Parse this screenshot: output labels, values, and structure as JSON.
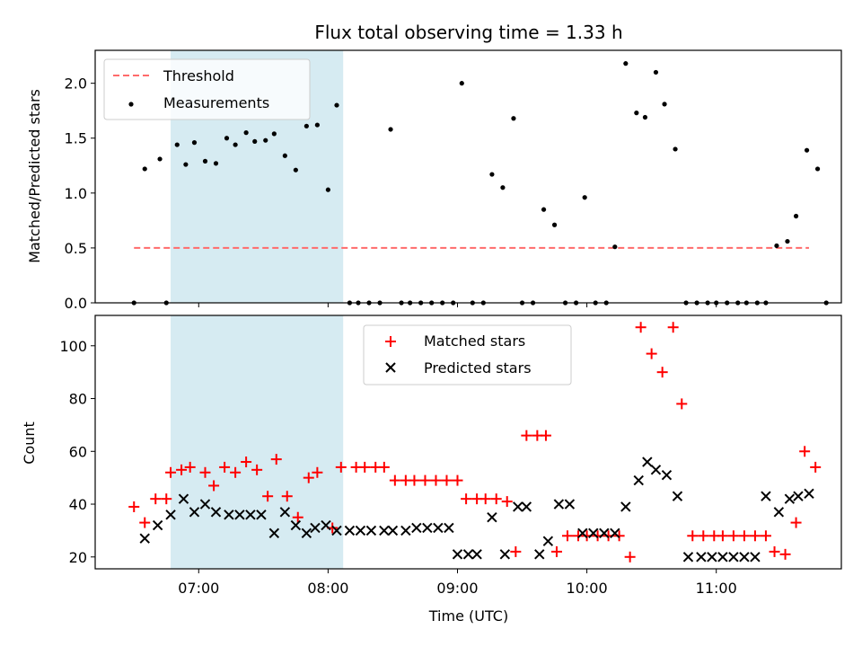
{
  "chart_data": [
    {
      "type": "scatter",
      "title": "Flux total observing time = 1.33 h",
      "xlabel": "",
      "ylabel": "Matched/Predicted stars",
      "xlim": [
        "06:12",
        "11:58"
      ],
      "ylim": [
        0,
        2.3
      ],
      "yticks": [
        0.0,
        0.5,
        1.0,
        1.5,
        2.0
      ],
      "ytick_labels": [
        "0.0",
        "0.5",
        "1.0",
        "1.5",
        "2.0"
      ],
      "legend_placement": "upper-left",
      "grid": false,
      "shaded_interval": {
        "start": "06:47",
        "end": "08:07",
        "color": "#add8e6"
      },
      "series": [
        {
          "name": "Threshold",
          "style": "dashed-line",
          "color": "#ff6b6b",
          "x": [
            "06:30",
            "11:43"
          ],
          "y": [
            0.5,
            0.5
          ]
        },
        {
          "name": "Measurements",
          "style": "dot",
          "color": "#000000",
          "x": [
            "06:30",
            "06:35",
            "06:42",
            "06:45",
            "06:50",
            "06:54",
            "06:58",
            "07:03",
            "07:08",
            "07:13",
            "07:17",
            "07:22",
            "07:26",
            "07:31",
            "07:35",
            "07:40",
            "07:45",
            "07:50",
            "07:55",
            "08:00",
            "08:04",
            "08:10",
            "08:14",
            "08:19",
            "08:24",
            "08:29",
            "08:34",
            "08:38",
            "08:43",
            "08:48",
            "08:53",
            "08:58",
            "09:02",
            "09:07",
            "09:12",
            "09:16",
            "09:21",
            "09:26",
            "09:30",
            "09:35",
            "09:40",
            "09:45",
            "09:50",
            "09:55",
            "09:59",
            "10:04",
            "10:09",
            "10:13",
            "10:18",
            "10:23",
            "10:27",
            "10:32",
            "10:36",
            "10:41",
            "10:46",
            "10:51",
            "10:56",
            "11:00",
            "11:05",
            "11:10",
            "11:14",
            "11:19",
            "11:23",
            "11:28",
            "11:33",
            "11:37",
            "11:42",
            "11:47",
            "11:51"
          ],
          "y": [
            0.0,
            1.22,
            1.31,
            0.0,
            1.44,
            1.26,
            1.46,
            1.29,
            1.27,
            1.5,
            1.44,
            1.55,
            1.47,
            1.48,
            1.54,
            1.34,
            1.21,
            1.61,
            1.62,
            1.03,
            1.8,
            0.0,
            0.0,
            0.0,
            0.0,
            1.58,
            0.0,
            0.0,
            0.0,
            0.0,
            0.0,
            0.0,
            2.0,
            0.0,
            0.0,
            1.17,
            1.05,
            1.68,
            0.0,
            0.0,
            0.85,
            0.71,
            0.0,
            0.0,
            0.96,
            0.0,
            0.0,
            0.51,
            2.18,
            1.73,
            1.69,
            2.1,
            1.81,
            1.4,
            0.0,
            0.0,
            0.0,
            0.0,
            0.0,
            0.0,
            0.0,
            0.0,
            0.0,
            0.52,
            0.56,
            0.79,
            1.39,
            1.22,
            0.0
          ]
        }
      ]
    },
    {
      "type": "scatter",
      "title": "",
      "xlabel": "Time (UTC)",
      "ylabel": "Count",
      "xlim": [
        "06:12",
        "11:58"
      ],
      "ylim": [
        15.5,
        111.5
      ],
      "xticks": [
        "07:00",
        "08:00",
        "09:00",
        "10:00",
        "11:00"
      ],
      "yticks": [
        20,
        40,
        60,
        80,
        100
      ],
      "ytick_labels": [
        "20",
        "40",
        "60",
        "80",
        "100"
      ],
      "legend_placement": "upper-center",
      "grid": false,
      "shaded_interval": {
        "start": "06:47",
        "end": "08:07",
        "color": "#add8e6"
      },
      "series": [
        {
          "name": "Matched stars",
          "marker": "plus",
          "color": "#ff0000",
          "x": [
            "06:30",
            "06:35",
            "06:40",
            "06:45",
            "06:47",
            "06:52",
            "06:56",
            "07:03",
            "07:07",
            "07:12",
            "07:17",
            "07:22",
            "07:27",
            "07:32",
            "07:36",
            "07:41",
            "07:46",
            "07:51",
            "07:55",
            "08:02",
            "08:06",
            "08:13",
            "08:17",
            "08:22",
            "08:26",
            "08:31",
            "08:36",
            "08:40",
            "08:45",
            "08:50",
            "08:55",
            "09:00",
            "09:04",
            "09:09",
            "09:13",
            "09:18",
            "09:23",
            "09:27",
            "09:32",
            "09:37",
            "09:41",
            "09:46",
            "09:51",
            "09:56",
            "10:00",
            "10:05",
            "10:10",
            "10:15",
            "10:20",
            "10:25",
            "10:30",
            "10:35",
            "10:40",
            "10:44",
            "10:49",
            "10:54",
            "10:59",
            "11:03",
            "11:08",
            "11:13",
            "11:18",
            "11:23",
            "11:27",
            "11:32",
            "11:37",
            "11:41",
            "11:46"
          ],
          "y": [
            39,
            33,
            42,
            42,
            52,
            53,
            54,
            52,
            47,
            54,
            52,
            56,
            53,
            43,
            57,
            43,
            35,
            50,
            52,
            31,
            54,
            54,
            54,
            54,
            54,
            49,
            49,
            49,
            49,
            49,
            49,
            49,
            42,
            42,
            42,
            42,
            41,
            22,
            66,
            66,
            66,
            22,
            28,
            28,
            28,
            28,
            28,
            28,
            20,
            107,
            97,
            90,
            107,
            78,
            28,
            28,
            28,
            28,
            28,
            28,
            28,
            28,
            22,
            21,
            33,
            60,
            54
          ]
        },
        {
          "name": "Predicted stars",
          "marker": "x",
          "color": "#000000",
          "x": [
            "06:35",
            "06:41",
            "06:47",
            "06:53",
            "06:58",
            "07:03",
            "07:08",
            "07:14",
            "07:19",
            "07:24",
            "07:29",
            "07:35",
            "07:40",
            "07:45",
            "07:50",
            "07:54",
            "07:59",
            "08:04",
            "08:10",
            "08:15",
            "08:20",
            "08:26",
            "08:30",
            "08:36",
            "08:41",
            "08:46",
            "08:51",
            "08:56",
            "09:00",
            "09:05",
            "09:09",
            "09:16",
            "09:22",
            "09:28",
            "09:32",
            "09:38",
            "09:42",
            "09:47",
            "09:52",
            "09:58",
            "10:03",
            "10:08",
            "10:13",
            "10:18",
            "10:24",
            "10:28",
            "10:32",
            "10:37",
            "10:42",
            "10:47",
            "10:53",
            "10:58",
            "11:03",
            "11:08",
            "11:13",
            "11:18",
            "11:23",
            "11:29",
            "11:34",
            "11:38",
            "11:43"
          ],
          "y": [
            27,
            32,
            36,
            42,
            37,
            40,
            37,
            36,
            36,
            36,
            36,
            29,
            37,
            32,
            29,
            31,
            32,
            30,
            30,
            30,
            30,
            30,
            30,
            30,
            31,
            31,
            31,
            31,
            21,
            21,
            21,
            35,
            21,
            39,
            39,
            21,
            26,
            40,
            40,
            29,
            29,
            29,
            29,
            39,
            49,
            56,
            53,
            51,
            43,
            20,
            20,
            20,
            20,
            20,
            20,
            20,
            43,
            37,
            42,
            43,
            44
          ]
        }
      ]
    }
  ]
}
